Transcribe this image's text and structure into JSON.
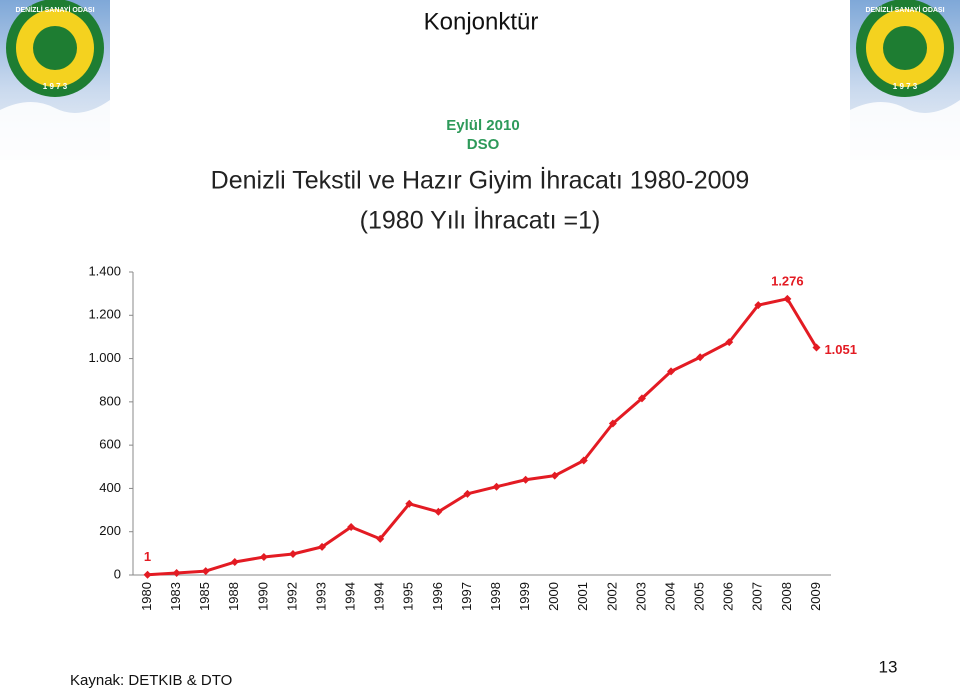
{
  "header": {
    "title": "Konjonktür",
    "date": "Eylül 2010",
    "org": "DSO",
    "logo_name": "DENİZLİ SANAYİ ODASI",
    "logo_year": "1 9 7 3"
  },
  "chart_data": {
    "type": "line",
    "title": "Denizli Tekstil ve Hazır Giyim İhracatı  1980-2009",
    "subtitle": "(1980 Yılı İhracatı =1)",
    "categories": [
      "1980",
      "1983",
      "1985",
      "1988",
      "1990",
      "1992",
      "1993",
      "1994",
      "1994",
      "1995",
      "1996",
      "1997",
      "1998",
      "1999",
      "2000",
      "2001",
      "2002",
      "2003",
      "2004",
      "2005",
      "2006",
      "2007",
      "2008",
      "2009"
    ],
    "values": [
      1,
      9,
      18,
      60,
      83,
      97,
      130,
      222,
      167,
      329,
      292,
      375,
      408,
      440,
      459,
      529,
      700,
      816,
      941,
      1006,
      1076,
      1247,
      1276,
      1051
    ],
    "value_labels": [
      "1",
      null,
      null,
      null,
      null,
      null,
      null,
      null,
      null,
      null,
      null,
      null,
      null,
      null,
      null,
      null,
      null,
      null,
      null,
      null,
      null,
      null,
      "1.276",
      "1.051"
    ],
    "color": "#e31b23",
    "ylim": [
      0,
      1400
    ],
    "yticks": [
      0,
      200,
      400,
      600,
      800,
      {
        "value": 1000,
        "label": "1.000"
      },
      {
        "value": 1200,
        "label": "1.200"
      },
      {
        "value": 1400,
        "label": "1.400"
      }
    ]
  },
  "footer": {
    "source": "Kaynak: DETKIB & DTO",
    "page": "13"
  }
}
